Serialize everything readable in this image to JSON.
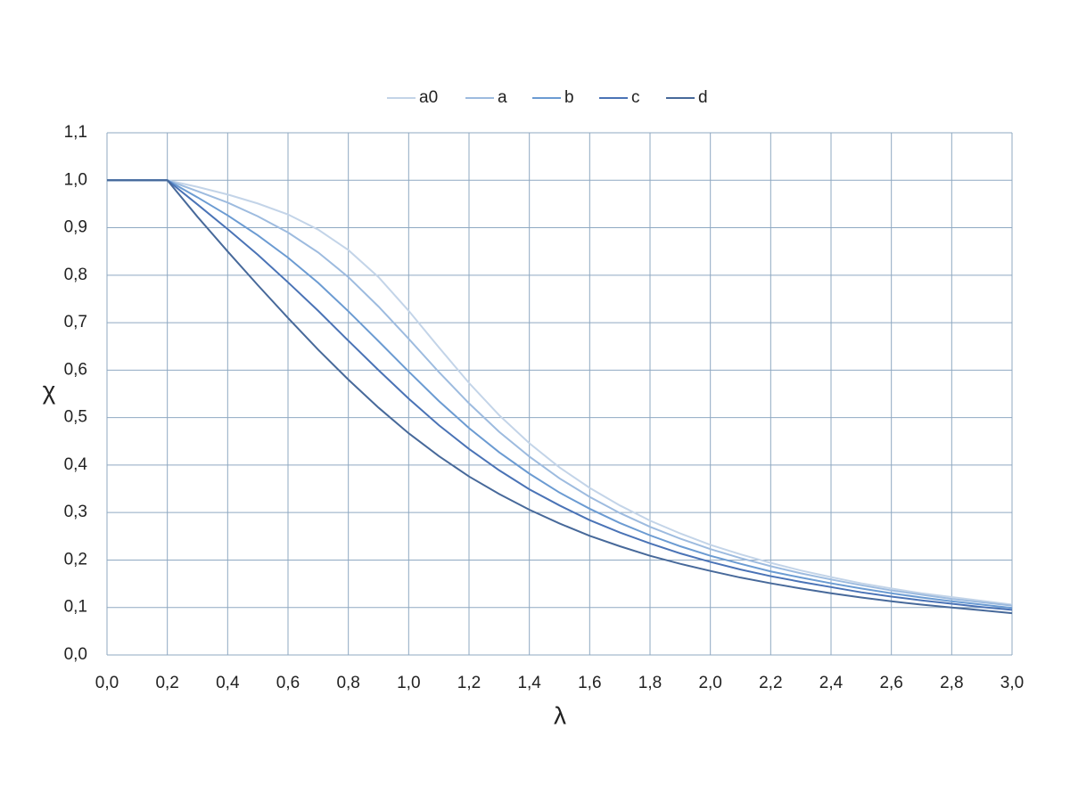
{
  "chart_data": {
    "type": "line",
    "x_label": "λ",
    "y_label": "χ",
    "x": [
      0,
      0.1,
      0.2,
      0.3,
      0.4,
      0.5,
      0.6,
      0.7,
      0.8,
      0.9,
      1.0,
      1.1,
      1.2,
      1.3,
      1.4,
      1.5,
      1.6,
      1.7,
      1.8,
      1.9,
      2.0,
      2.1,
      2.2,
      2.3,
      2.4,
      2.5,
      2.6,
      2.7,
      2.8,
      2.9,
      3.0
    ],
    "series": [
      {
        "name": "a0",
        "color": "#c3d4e8",
        "values": [
          1,
          1,
          1,
          0.986,
          0.97,
          0.951,
          0.928,
          0.896,
          0.853,
          0.796,
          0.725,
          0.648,
          0.573,
          0.505,
          0.446,
          0.395,
          0.352,
          0.315,
          0.283,
          0.256,
          0.232,
          0.212,
          0.194,
          0.178,
          0.164,
          0.151,
          0.14,
          0.13,
          0.122,
          0.114,
          0.106
        ]
      },
      {
        "name": "a",
        "color": "#9dbbdf",
        "values": [
          1,
          1,
          1,
          0.977,
          0.953,
          0.924,
          0.89,
          0.848,
          0.796,
          0.734,
          0.666,
          0.596,
          0.53,
          0.47,
          0.418,
          0.372,
          0.333,
          0.299,
          0.27,
          0.245,
          0.223,
          0.204,
          0.187,
          0.172,
          0.159,
          0.147,
          0.136,
          0.127,
          0.118,
          0.111,
          0.104
        ]
      },
      {
        "name": "b",
        "color": "#6b9bd2",
        "values": [
          1,
          1,
          1,
          0.964,
          0.926,
          0.884,
          0.837,
          0.784,
          0.724,
          0.661,
          0.597,
          0.535,
          0.478,
          0.427,
          0.382,
          0.342,
          0.308,
          0.278,
          0.252,
          0.229,
          0.209,
          0.192,
          0.176,
          0.163,
          0.151,
          0.14,
          0.13,
          0.121,
          0.113,
          0.106,
          0.099
        ]
      },
      {
        "name": "c",
        "color": "#4a73b6",
        "values": [
          1,
          1,
          1,
          0.949,
          0.897,
          0.843,
          0.785,
          0.725,
          0.662,
          0.6,
          0.54,
          0.484,
          0.434,
          0.389,
          0.349,
          0.315,
          0.284,
          0.258,
          0.235,
          0.214,
          0.196,
          0.18,
          0.166,
          0.154,
          0.143,
          0.132,
          0.123,
          0.115,
          0.108,
          0.101,
          0.095
        ]
      },
      {
        "name": "d",
        "color": "#47699a",
        "values": [
          1,
          1,
          1,
          0.923,
          0.85,
          0.779,
          0.71,
          0.643,
          0.58,
          0.521,
          0.467,
          0.419,
          0.376,
          0.339,
          0.306,
          0.277,
          0.251,
          0.229,
          0.209,
          0.192,
          0.177,
          0.163,
          0.151,
          0.14,
          0.13,
          0.121,
          0.113,
          0.106,
          0.1,
          0.094,
          0.088
        ]
      }
    ],
    "xlim": [
      0,
      3.0
    ],
    "xticks": [
      {
        "value": 0,
        "label": "0,0"
      },
      {
        "value": 0.2,
        "label": "0,2"
      },
      {
        "value": 0.4,
        "label": "0,4"
      },
      {
        "value": 0.6,
        "label": "0,6"
      },
      {
        "value": 0.8,
        "label": "0,8"
      },
      {
        "value": 1.0,
        "label": "1,0"
      },
      {
        "value": 1.2,
        "label": "1,2"
      },
      {
        "value": 1.4,
        "label": "1,4"
      },
      {
        "value": 1.6,
        "label": "1,6"
      },
      {
        "value": 1.8,
        "label": "1,8"
      },
      {
        "value": 2.0,
        "label": "2,0"
      },
      {
        "value": 2.2,
        "label": "2,2"
      },
      {
        "value": 2.4,
        "label": "2,4"
      },
      {
        "value": 2.6,
        "label": "2,6"
      },
      {
        "value": 2.8,
        "label": "2,8"
      },
      {
        "value": 3.0,
        "label": "3,0"
      }
    ],
    "ylim": [
      0,
      1.1
    ],
    "yticks": [
      {
        "value": 0,
        "label": "0,0"
      },
      {
        "value": 0.1,
        "label": "0,1"
      },
      {
        "value": 0.2,
        "label": "0,2"
      },
      {
        "value": 0.3,
        "label": "0,3"
      },
      {
        "value": 0.4,
        "label": "0,4"
      },
      {
        "value": 0.5,
        "label": "0,5"
      },
      {
        "value": 0.6,
        "label": "0,6"
      },
      {
        "value": 0.7,
        "label": "0,7"
      },
      {
        "value": 0.8,
        "label": "0,8"
      },
      {
        "value": 0.9,
        "label": "0,9"
      },
      {
        "value": 1.0,
        "label": "1,0"
      },
      {
        "value": 1.1,
        "label": "1,1"
      }
    ],
    "grid": true,
    "grid_color": "#8fa9c2",
    "legend": "top"
  }
}
